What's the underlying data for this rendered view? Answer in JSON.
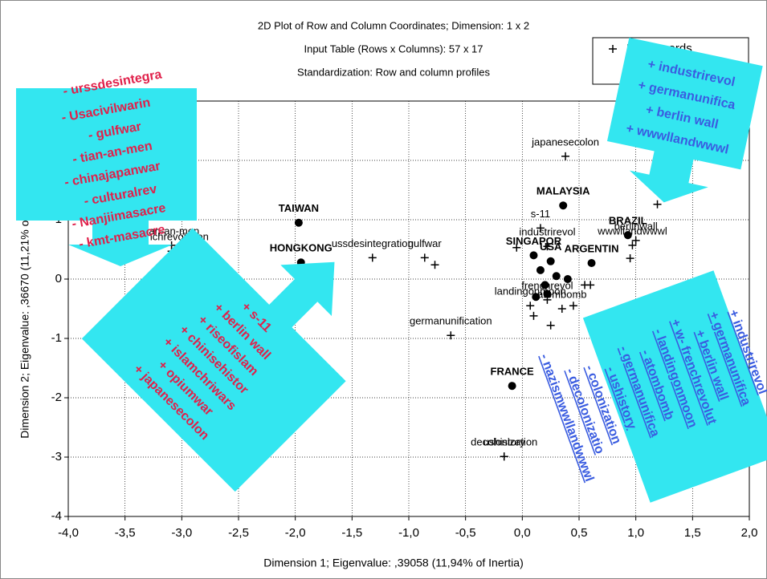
{
  "chart_data": {
    "type": "scatter",
    "title": "2D Plot of Row and Column Coordinates; Dimension: 1 x 2",
    "subtitle": [
      "Input Table (Rows x Columns): 57 x 17",
      "Standardization: Row and column profiles"
    ],
    "x_label": "Dimension 1; Eigenvalue: ,39058 (11,94% of Inertia)",
    "y_label": "Dimension 2; Eigenvalue: ,36670 (11,21% of Inertia)",
    "xlim": [
      -4,
      2
    ],
    "ylim": [
      -4,
      3
    ],
    "xticks": [
      {
        "value": -4,
        "label": "-4,0"
      },
      {
        "value": -3.5,
        "label": "-3,5"
      },
      {
        "value": -3,
        "label": "-3,0"
      },
      {
        "value": -2.5,
        "label": "-2,5"
      },
      {
        "value": -2,
        "label": "-2,0"
      },
      {
        "value": -1.5,
        "label": "-1,5"
      },
      {
        "value": -1,
        "label": "-1,0"
      },
      {
        "value": -0.5,
        "label": "-0,5"
      },
      {
        "value": 0,
        "label": "0,0"
      },
      {
        "value": 0.5,
        "label": "0,5"
      },
      {
        "value": 1,
        "label": "1,0"
      },
      {
        "value": 1.5,
        "label": "1,5"
      },
      {
        "value": 2,
        "label": "2,0"
      }
    ],
    "yticks": [
      -4,
      -3,
      -2,
      -1,
      0,
      1,
      2
    ],
    "grid": true,
    "legend": "top-right",
    "series": [
      {
        "name": "Row.Coords",
        "marker": "plus",
        "color": "#000000",
        "x": [
          -3.09,
          -3.09,
          -1.32,
          -0.86,
          -0.77,
          -0.63,
          -0.16,
          -0.16,
          0.38,
          0.16,
          0.22,
          1.0,
          0.97,
          1.19,
          0.95,
          0.6,
          0.25,
          0.07,
          0.35,
          0.1,
          0.45,
          0.22,
          0.55,
          -0.05
        ],
        "values": [
          0.57,
          0.47,
          0.36,
          0.36,
          0.24,
          -0.95,
          -2.99,
          -2.99,
          2.07,
          0.86,
          0.55,
          0.65,
          0.57,
          1.26,
          0.35,
          -0.1,
          -0.78,
          -0.45,
          -0.5,
          -0.62,
          -0.45,
          -0.35,
          -0.1,
          0.53
        ],
        "labels": [
          "tian-an-men",
          "frenchrevolution",
          "ussdesintegration",
          "gulfwar",
          null,
          "germanunification",
          "decolonization",
          "ushistory",
          "japanesecolon",
          "s-11",
          "industrirevol",
          "berlinwall",
          "wwwllandwwwl",
          null,
          null,
          null,
          null,
          "landingonmoon",
          "atombomb",
          null,
          null,
          "frenchrevol",
          null,
          null
        ]
      },
      {
        "marker": "circle",
        "color": "#000000",
        "x": [
          -1.97,
          -1.95,
          0.36,
          0.93,
          -0.09,
          0.1,
          0.25,
          0.61,
          0.16,
          0.3,
          0.2,
          0.12,
          0.4,
          0.22
        ],
        "values": [
          0.95,
          0.28,
          1.24,
          0.74,
          -1.8,
          0.4,
          0.3,
          0.27,
          0.15,
          0.05,
          -0.1,
          -0.3,
          0.0,
          -0.25
        ],
        "labels": [
          "TAIWAN",
          "HONGKONG",
          "MALAYSIA",
          "BRAZIL",
          "FRANCE",
          "SINGAPOR",
          "USA",
          "ARGENTIN",
          null,
          null,
          null,
          null,
          null,
          null
        ]
      }
    ],
    "annotations": [
      {
        "lines": [
          "- urssdesintegra",
          "- Usacivilwarin",
          "- gulfwar",
          "- tian-an-men",
          "- chinajapanwar",
          "- culturalrev",
          "- Nanjiimasacre",
          "- kmt-masacre"
        ]
      },
      {
        "lines": [
          "+ industrirevol",
          "+ germanunifica",
          "+ berlin wall",
          "+ wwwllandwwwl"
        ]
      },
      {
        "lines": [
          "+ s-11",
          "+ berlin wall",
          "+ riseofislam",
          "+ chinisehistor",
          "+ islamchriwars",
          "+ opiumwar",
          "+ japanesecolon"
        ]
      },
      {
        "lines": [
          "+ industrirevol",
          "+ germanunifica",
          "+ berlin wall",
          "+ w- frenchrevolut",
          "- landingonmoon",
          "- atombomb",
          "- germanunifica",
          "- ushistory",
          "- colonization",
          "- decolonizatio",
          "- nazismwwllandwwwl"
        ]
      }
    ]
  }
}
